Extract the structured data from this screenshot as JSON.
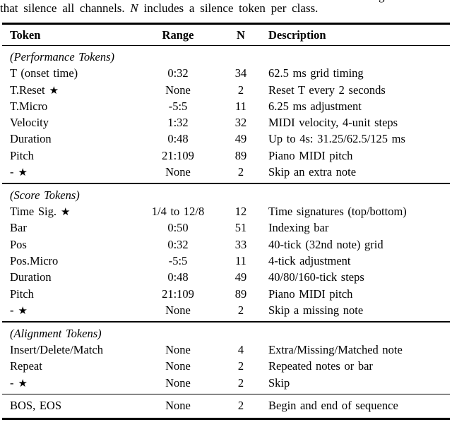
{
  "page": {
    "background": "#ffffff",
    "text_color": "#000000",
    "rule_color": "#000000"
  },
  "icons": {
    "star": "★"
  },
  "caption": {
    "prev_line_fragment": "g",
    "part1": "that silence all channels. ",
    "n_symbol": "N",
    "part2": " includes a silence token per class."
  },
  "table": {
    "headers": [
      "Token",
      "Range",
      "N",
      "Description"
    ],
    "sections": [
      {
        "title": "(Performance Tokens)",
        "rows": [
          {
            "token": "T (onset time)",
            "star": false,
            "range": "0:32",
            "n": "34",
            "desc": "62.5 ms grid timing"
          },
          {
            "token": "T.Reset",
            "star": true,
            "range": "None",
            "n": "2",
            "desc": "Reset T every 2 seconds"
          },
          {
            "token": "T.Micro",
            "star": false,
            "range": "-5:5",
            "n": "11",
            "desc": "6.25 ms adjustment"
          },
          {
            "token": "Velocity",
            "star": false,
            "range": "1:32",
            "n": "32",
            "desc": "MIDI velocity, 4-unit steps"
          },
          {
            "token": "Duration",
            "star": false,
            "range": "0:48",
            "n": "49",
            "desc": "Up to 4s: 31.25/62.5/125 ms"
          },
          {
            "token": "Pitch",
            "star": false,
            "range": "21:109",
            "n": "89",
            "desc": "Piano MIDI pitch"
          },
          {
            "token": "-",
            "star": true,
            "range": "None",
            "n": "2",
            "desc": "Skip an extra note"
          }
        ]
      },
      {
        "title": "(Score Tokens)",
        "rows": [
          {
            "token": "Time Sig.",
            "star": true,
            "range": "1/4 to 12/8",
            "n": "12",
            "desc": "Time signatures (top/bottom)"
          },
          {
            "token": "Bar",
            "star": false,
            "range": "0:50",
            "n": "51",
            "desc": "Indexing bar"
          },
          {
            "token": "Pos",
            "star": false,
            "range": "0:32",
            "n": "33",
            "desc": "40-tick (32nd note) grid"
          },
          {
            "token": "Pos.Micro",
            "star": false,
            "range": "-5:5",
            "n": "11",
            "desc": "4-tick adjustment"
          },
          {
            "token": "Duration",
            "star": false,
            "range": "0:48",
            "n": "49",
            "desc": "40/80/160-tick steps"
          },
          {
            "token": "Pitch",
            "star": false,
            "range": "21:109",
            "n": "89",
            "desc": "Piano MIDI pitch"
          },
          {
            "token": "-",
            "star": true,
            "range": "None",
            "n": "2",
            "desc": "Skip a missing note"
          }
        ]
      },
      {
        "title": "(Alignment Tokens)",
        "rows": [
          {
            "token": "Insert/Delete/Match",
            "star": false,
            "range": "None",
            "n": "4",
            "desc": "Extra/Missing/Matched note"
          },
          {
            "token": "Repeat",
            "star": false,
            "range": "None",
            "n": "2",
            "desc": "Repeated notes or bar"
          },
          {
            "token": "-",
            "star": true,
            "range": "None",
            "n": "2",
            "desc": "Skip"
          }
        ]
      }
    ],
    "footer": {
      "token": "BOS, EOS",
      "star": false,
      "range": "None",
      "n": "2",
      "desc": "Begin and end of sequence"
    }
  }
}
